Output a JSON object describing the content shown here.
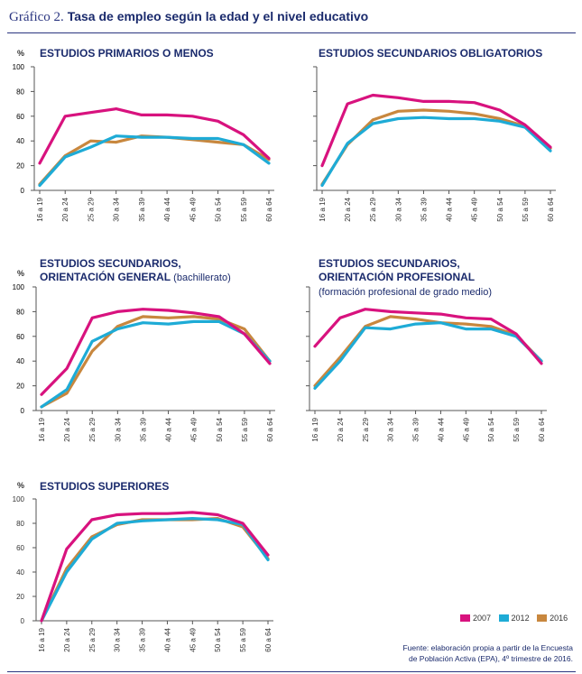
{
  "title": {
    "label": "Gráfico 2.",
    "text": "Tasa de empleo según la edad y el nivel educativo"
  },
  "colors": {
    "2007": "#d8127e",
    "2012": "#1eabd6",
    "2016": "#c8873e",
    "axis": "#555555",
    "title": "#1a2a6c"
  },
  "legend": [
    {
      "name": "2007",
      "color": "#d8127e"
    },
    {
      "name": "2012",
      "color": "#1eabd6"
    },
    {
      "name": "2016",
      "color": "#c8873e"
    }
  ],
  "source": {
    "line1": "Fuente: elaboración propia a partir de la Encuesta",
    "line2": "de Población Activa (EPA), 4º trimestre de 2016."
  },
  "chart_data": [
    {
      "type": "line",
      "title": "ESTUDIOS PRIMARIOS O MENOS",
      "title_line2_bold": "",
      "title_line2_normal": "",
      "subtitle": "",
      "ylabel": "%",
      "ylim": [
        0,
        100
      ],
      "yticks": [
        "0",
        "20",
        "40",
        "60",
        "80",
        "100"
      ],
      "categories": [
        "16 a 19",
        "20 a 24",
        "25 a 29",
        "30 a 34",
        "35 a 39",
        "40 a 44",
        "45 a 49",
        "50 a 54",
        "55 a 59",
        "60 a 64"
      ],
      "series": [
        {
          "name": "2007",
          "values": [
            22,
            60,
            63,
            66,
            61,
            61,
            60,
            56,
            45,
            26
          ]
        },
        {
          "name": "2012",
          "values": [
            4,
            27,
            35,
            44,
            43,
            43,
            42,
            42,
            37,
            22
          ]
        },
        {
          "name": "2016",
          "values": [
            5,
            28,
            40,
            39,
            44,
            43,
            41,
            39,
            37,
            25
          ]
        }
      ]
    },
    {
      "type": "line",
      "title": "ESTUDIOS SECUNDARIOS OBLIGATORIOS",
      "title_line2_bold": "",
      "title_line2_normal": "",
      "subtitle": "",
      "ylabel": "",
      "ylim": [
        0,
        100
      ],
      "yticks": [
        "0",
        "20",
        "40",
        "60",
        "80",
        "100"
      ],
      "categories": [
        "16 a 19",
        "20 a 24",
        "25 a 29",
        "30 a 34",
        "35 a 39",
        "40 a 44",
        "45 a 49",
        "50 a 54",
        "55 a 59",
        "60 a 64"
      ],
      "series": [
        {
          "name": "2007",
          "values": [
            20,
            70,
            77,
            75,
            72,
            72,
            71,
            65,
            53,
            35
          ]
        },
        {
          "name": "2012",
          "values": [
            4,
            38,
            54,
            58,
            59,
            58,
            58,
            56,
            51,
            32
          ]
        },
        {
          "name": "2016",
          "values": [
            5,
            37,
            57,
            64,
            65,
            64,
            62,
            58,
            52,
            34
          ]
        }
      ]
    },
    {
      "type": "line",
      "title": "ESTUDIOS SECUNDARIOS,",
      "title_line2_bold": "ORIENTACIÓN GENERAL",
      "title_line2_normal": " (bachillerato)",
      "subtitle": "",
      "ylabel": "%",
      "ylim": [
        0,
        100
      ],
      "yticks": [
        "0",
        "20",
        "40",
        "60",
        "80",
        "100"
      ],
      "categories": [
        "16 a 19",
        "20 a 24",
        "25 a 29",
        "30 a 34",
        "35 a 39",
        "40 a 44",
        "45 a 49",
        "50 a 54",
        "55 a 59",
        "60 a 64"
      ],
      "series": [
        {
          "name": "2007",
          "values": [
            13,
            34,
            75,
            80,
            82,
            81,
            79,
            76,
            62,
            38
          ]
        },
        {
          "name": "2012",
          "values": [
            3,
            17,
            56,
            66,
            71,
            70,
            72,
            72,
            62,
            40
          ]
        },
        {
          "name": "2016",
          "values": [
            3,
            14,
            48,
            68,
            76,
            75,
            76,
            74,
            66,
            40
          ]
        }
      ]
    },
    {
      "type": "line",
      "title": "ESTUDIOS SECUNDARIOS,",
      "title_line2_bold": "ORIENTACIÓN PROFESIONAL",
      "title_line2_normal": "",
      "subtitle": "(formación profesional de grado medio)",
      "ylabel": "",
      "ylim": [
        0,
        100
      ],
      "yticks": [
        "0",
        "20",
        "40",
        "60",
        "80",
        "100"
      ],
      "categories": [
        "16 a 19",
        "20 a 24",
        "25 a 29",
        "30 a 34",
        "35 a 39",
        "40 a 44",
        "45 a 49",
        "50 a 54",
        "55 a 59",
        "60 a 64"
      ],
      "series": [
        {
          "name": "2007",
          "values": [
            52,
            75,
            82,
            80,
            79,
            78,
            75,
            74,
            62,
            38
          ]
        },
        {
          "name": "2012",
          "values": [
            18,
            40,
            67,
            66,
            70,
            71,
            66,
            66,
            60,
            40
          ]
        },
        {
          "name": "2016",
          "values": [
            20,
            43,
            68,
            76,
            74,
            71,
            70,
            68,
            61,
            40
          ]
        }
      ]
    },
    {
      "type": "line",
      "title": "ESTUDIOS SUPERIORES",
      "title_line2_bold": "",
      "title_line2_normal": "",
      "subtitle": "",
      "ylabel": "%",
      "ylim": [
        0,
        100
      ],
      "yticks": [
        "0",
        "20",
        "40",
        "60",
        "80",
        "100"
      ],
      "categories": [
        "16 a 19",
        "20 a 24",
        "25 a 29",
        "30 a 34",
        "35 a 39",
        "40 a 44",
        "45 a 49",
        "50 a 54",
        "55 a 59",
        "60 a 64"
      ],
      "series": [
        {
          "name": "2007",
          "values": [
            0,
            59,
            83,
            87,
            88,
            88,
            89,
            87,
            80,
            54
          ]
        },
        {
          "name": "2012",
          "values": [
            0,
            40,
            67,
            80,
            82,
            83,
            84,
            83,
            79,
            50
          ]
        },
        {
          "name": "2016",
          "values": [
            0,
            43,
            69,
            79,
            83,
            83,
            83,
            84,
            77,
            51
          ]
        }
      ]
    }
  ]
}
